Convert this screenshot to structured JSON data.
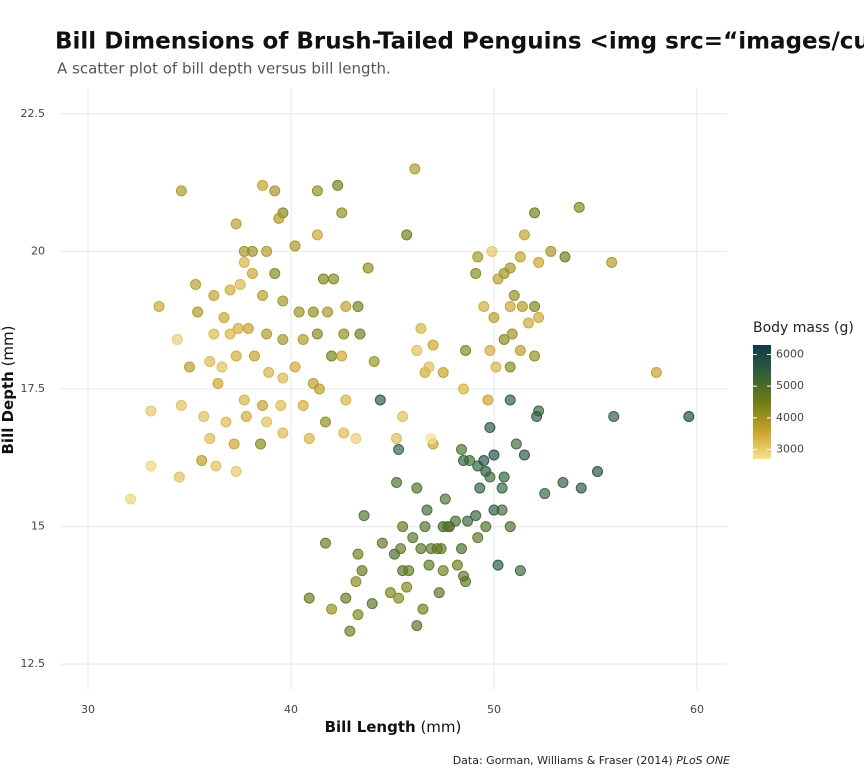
{
  "chart_data": {
    "type": "scatter",
    "title": "Bill Dimensions of Brush-Tailed Penguins <img src=“images/culmen_",
    "subtitle": "A scatter plot of bill depth versus bill length.",
    "x_label": {
      "bold": "Bill Length",
      "rest": " (mm)"
    },
    "y_label": {
      "bold": "Bill Depth",
      "rest": " (mm)"
    },
    "caption": {
      "text": "Data: Gorman, Williams & Fraser (2014) ",
      "italic": "PLoS ONE"
    },
    "xlim": [
      28.62,
      61.48
    ],
    "xticks": [
      30,
      40,
      50,
      60
    ],
    "ylim": [
      12.03,
      22.97
    ],
    "yticks": [
      12.5,
      15,
      17.5,
      20,
      22.5
    ],
    "grid": true,
    "color_scale": {
      "name": "Body mass (g)",
      "lim": [
        2700,
        6300
      ],
      "ticks": [
        3000,
        4000,
        5000,
        6000
      ],
      "colors": [
        "#f7e08f",
        "#c9a227",
        "#6f7d14",
        "#2f5e3a",
        "#0d3b4a"
      ]
    },
    "x": [
      34.6,
      38.6,
      39.2,
      41.3,
      42.3,
      39.6,
      42.5,
      37.3,
      39.4,
      40.2,
      41.3,
      37.7,
      38.1,
      38.8,
      37.7,
      35.3,
      36.2,
      37.0,
      37.5,
      38.1,
      39.2,
      41.6,
      42.1,
      43.8,
      33.5,
      35.4,
      36.7,
      37.4,
      38.6,
      39.6,
      40.4,
      41.1,
      41.8,
      42.7,
      43.3,
      36.2,
      37.0,
      37.9,
      38.8,
      39.6,
      40.6,
      41.3,
      42.0,
      42.6,
      43.4,
      34.4,
      36.0,
      36.6,
      37.3,
      38.2,
      38.9,
      39.6,
      40.2,
      41.1,
      42.5,
      44.1,
      35.0,
      36.4,
      37.7,
      38.6,
      39.5,
      40.6,
      41.4,
      42.7,
      33.1,
      34.6,
      35.7,
      36.8,
      37.8,
      38.8,
      39.6,
      40.9,
      41.7,
      42.6,
      43.2,
      35.6,
      36.3,
      37.3,
      33.1,
      34.5,
      32.1,
      36.0,
      37.2,
      38.5,
      46.1,
      45.7,
      49.9,
      52.0,
      54.2,
      51.5,
      52.8,
      53.5,
      55.8,
      49.1,
      50.5,
      50.8,
      51.3,
      52.2,
      49.2,
      50.2,
      51.0,
      50.8,
      51.4,
      52.0,
      46.4,
      49.5,
      47.0,
      50.0,
      50.5,
      51.3,
      52.2,
      46.2,
      48.6,
      49.8,
      50.9,
      51.7,
      52.0,
      46.6,
      47.5,
      50.1,
      50.8,
      58.0,
      45.5,
      46.8,
      48.5,
      49.7,
      47.0,
      45.2,
      46.9,
      59.6,
      55.9,
      52.1,
      52.2,
      50.8,
      44.4,
      49.8,
      51.1,
      51.5,
      50.5,
      52.5,
      53.4,
      54.3,
      55.1,
      48.5,
      49.2,
      49.5,
      49.6,
      50.0,
      50.4,
      49.8,
      48.8,
      48.4,
      47.8,
      47.5,
      48.7,
      49.1,
      49.6,
      50.0,
      50.4,
      50.8,
      45.3,
      45.2,
      46.2,
      47.6,
      46.6,
      45.5,
      45.1,
      46.0,
      47.2,
      48.2,
      49.2,
      44.9,
      45.3,
      46.5,
      46.2,
      42.9,
      42.0,
      40.9,
      43.3,
      43.5,
      43.3,
      44.0,
      44.5,
      41.7,
      43.2,
      42.7,
      45.5,
      46.4,
      46.7,
      47.4,
      47.3,
      46.9,
      47.5,
      48.1,
      48.6,
      48.5,
      49.3,
      50.2,
      51.3,
      45.4,
      45.7,
      46.8,
      43.6,
      45.8,
      47.7,
      48.4
    ],
    "values": [
      21.1,
      21.2,
      21.1,
      21.1,
      21.2,
      20.7,
      20.7,
      20.5,
      20.6,
      20.1,
      20.3,
      20.0,
      20.0,
      20.0,
      19.8,
      19.4,
      19.2,
      19.3,
      19.4,
      19.6,
      19.6,
      19.5,
      19.5,
      19.7,
      19.0,
      18.9,
      18.8,
      18.6,
      19.2,
      19.1,
      18.9,
      18.9,
      18.9,
      19.0,
      19.0,
      18.5,
      18.5,
      18.6,
      18.5,
      18.4,
      18.4,
      18.5,
      18.1,
      18.5,
      18.5,
      18.4,
      18.0,
      17.9,
      18.1,
      18.1,
      17.8,
      17.7,
      17.9,
      17.6,
      18.1,
      18.0,
      17.9,
      17.6,
      17.3,
      17.2,
      17.2,
      17.2,
      17.5,
      17.3,
      17.1,
      17.2,
      17.0,
      16.9,
      17.0,
      16.9,
      16.7,
      16.6,
      16.9,
      16.7,
      16.6,
      16.2,
      16.1,
      16.0,
      16.1,
      15.9,
      15.5,
      16.6,
      16.5,
      16.5,
      21.5,
      20.3,
      20.0,
      20.7,
      20.8,
      20.3,
      20.0,
      19.9,
      19.8,
      19.6,
      19.6,
      19.7,
      19.9,
      19.8,
      19.9,
      19.5,
      19.2,
      19.0,
      19.0,
      19.0,
      18.6,
      19.0,
      18.3,
      18.8,
      18.4,
      18.2,
      18.8,
      18.2,
      18.2,
      18.2,
      18.5,
      18.7,
      18.1,
      17.8,
      17.8,
      17.9,
      17.9,
      17.8,
      17.0,
      17.9,
      17.5,
      17.3,
      16.5,
      16.6,
      16.6,
      17.0,
      17.0,
      17.0,
      17.1,
      17.3,
      17.3,
      16.8,
      16.5,
      16.3,
      15.9,
      15.6,
      15.8,
      15.7,
      16.0,
      16.2,
      16.1,
      16.2,
      16.0,
      16.3,
      15.7,
      15.9,
      16.2,
      16.4,
      15.0,
      15.0,
      15.1,
      15.2,
      15.0,
      15.3,
      15.3,
      15.0,
      16.4,
      15.8,
      15.7,
      15.5,
      15.0,
      15.0,
      14.5,
      14.8,
      14.6,
      14.3,
      14.8,
      13.8,
      13.7,
      13.5,
      13.2,
      13.1,
      13.5,
      13.7,
      13.4,
      14.2,
      14.5,
      13.6,
      14.7,
      14.7,
      14.0,
      13.7,
      14.2,
      14.6,
      15.3,
      14.6,
      13.8,
      14.6,
      14.2,
      15.1,
      14.0,
      14.1,
      15.7,
      14.3,
      14.2,
      14.6,
      13.9,
      14.3,
      15.2,
      14.2,
      15.0,
      14.6
    ],
    "color_values": [
      3900,
      3700,
      4000,
      4200,
      4500,
      4300,
      4200,
      3800,
      3900,
      4000,
      3600,
      4000,
      4100,
      3900,
      3400,
      3800,
      3700,
      3500,
      3300,
      3600,
      4300,
      4400,
      4300,
      4200,
      3600,
      3900,
      3600,
      3500,
      3800,
      4000,
      4100,
      4200,
      4000,
      3700,
      4500,
      3300,
      3400,
      3700,
      3900,
      4000,
      3900,
      4300,
      4500,
      4200,
      4600,
      3000,
      3300,
      3200,
      3500,
      3700,
      3400,
      3300,
      3550,
      3800,
      3600,
      4100,
      3800,
      3600,
      3400,
      3700,
      3300,
      3500,
      3800,
      3400,
      3100,
      3200,
      3250,
      3300,
      3500,
      3200,
      3300,
      3400,
      4200,
      3300,
      3000,
      3800,
      3200,
      3100,
      2900,
      3200,
      2900,
      3300,
      3600,
      4300,
      3900,
      4600,
      3100,
      4600,
      4400,
      3700,
      4000,
      4600,
      3900,
      4300,
      4100,
      4000,
      3700,
      3600,
      4000,
      3800,
      4200,
      3600,
      3900,
      4400,
      3400,
      3500,
      3600,
      3800,
      4300,
      3800,
      3550,
      3200,
      4400,
      3500,
      4100,
      3550,
      4200,
      3500,
      3700,
      3400,
      4300,
      3700,
      3250,
      3250,
      3400,
      3600,
      3700,
      3250,
      2700,
      6050,
      5600,
      5550,
      5400,
      5650,
      5700,
      5700,
      5250,
      5750,
      5400,
      5350,
      5500,
      5650,
      5850,
      5500,
      5500,
      5800,
      5700,
      5950,
      5400,
      5200,
      5200,
      5050,
      5650,
      5300,
      5350,
      5400,
      5000,
      5550,
      5200,
      5100,
      5450,
      5000,
      4950,
      5000,
      5000,
      4700,
      5100,
      4900,
      4700,
      4600,
      4850,
      4450,
      4350,
      4550,
      4900,
      4600,
      4150,
      4650,
      4400,
      4700,
      4600,
      4900,
      4800,
      4700,
      4300,
      4700,
      4950,
      4900,
      5200,
      4725,
      4900,
      4850,
      4600,
      5100,
      4800,
      4875,
      5450,
      5700,
      5300,
      4800,
      4400,
      4850,
      5000,
      4700,
      4750,
      5100
    ]
  }
}
